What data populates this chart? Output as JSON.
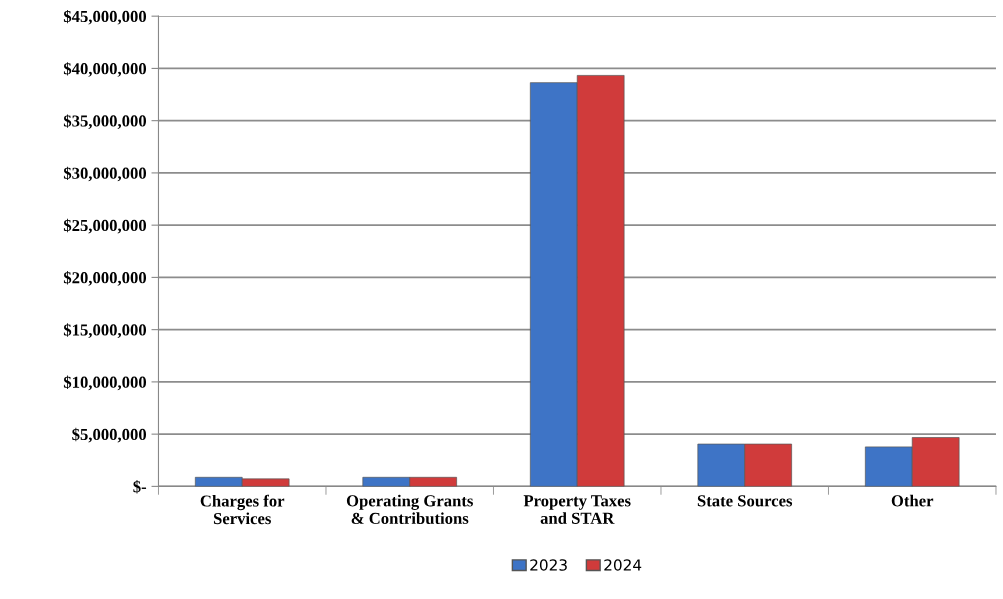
{
  "chart_data": {
    "type": "bar",
    "categories": [
      "Charges for\nServices",
      "Operating Grants\n& Contributions",
      "Property Taxes\nand STAR",
      "State Sources",
      "Other"
    ],
    "series": [
      {
        "name": "2023",
        "color": "#3e74c6",
        "values": [
          870000,
          870000,
          38640000,
          4050000,
          3780000
        ]
      },
      {
        "name": "2024",
        "color": "#d03b3b",
        "values": [
          720000,
          870000,
          39330000,
          4050000,
          4680000
        ]
      }
    ],
    "ylim": [
      0,
      45000000
    ],
    "yticks": [
      {
        "value": 0,
        "label": "$-"
      },
      {
        "value": 5000000,
        "label": "$5,000,000"
      },
      {
        "value": 10000000,
        "label": "$10,000,000"
      },
      {
        "value": 15000000,
        "label": "$15,000,000"
      },
      {
        "value": 20000000,
        "label": "$20,000,000"
      },
      {
        "value": 25000000,
        "label": "$25,000,000"
      },
      {
        "value": 30000000,
        "label": "$30,000,000"
      },
      {
        "value": 35000000,
        "label": "$35,000,000"
      },
      {
        "value": 40000000,
        "label": "$40,000,000"
      },
      {
        "value": 45000000,
        "label": "$45,000,000"
      }
    ],
    "grid": "y",
    "legend": "bottom"
  }
}
